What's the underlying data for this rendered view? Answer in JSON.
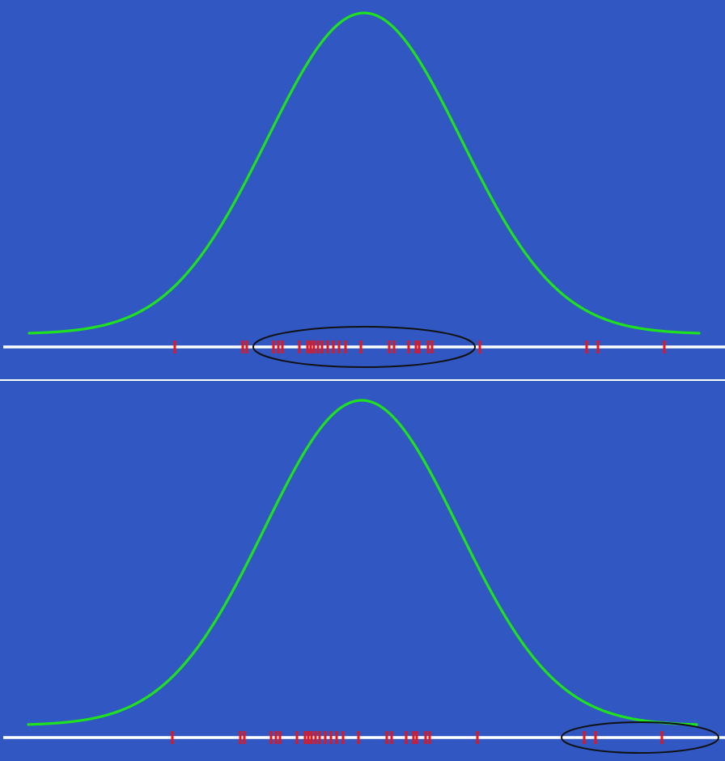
{
  "colors": {
    "background": "#3158c2",
    "curve": "#1fe21f",
    "axis": "#ffffff",
    "tick": "#e8141c",
    "ellipse": "#111111",
    "divider": "#ffffff"
  },
  "panels": [
    {
      "name": "top",
      "highlight": "central-cluster"
    },
    {
      "name": "bottom",
      "highlight": "right-tail"
    }
  ],
  "diagram": {
    "type": "normal-density-with-rug",
    "curve_icon": "bell-curve",
    "rug_icon": "sample-tick",
    "highlight_icon": "ellipse"
  }
}
